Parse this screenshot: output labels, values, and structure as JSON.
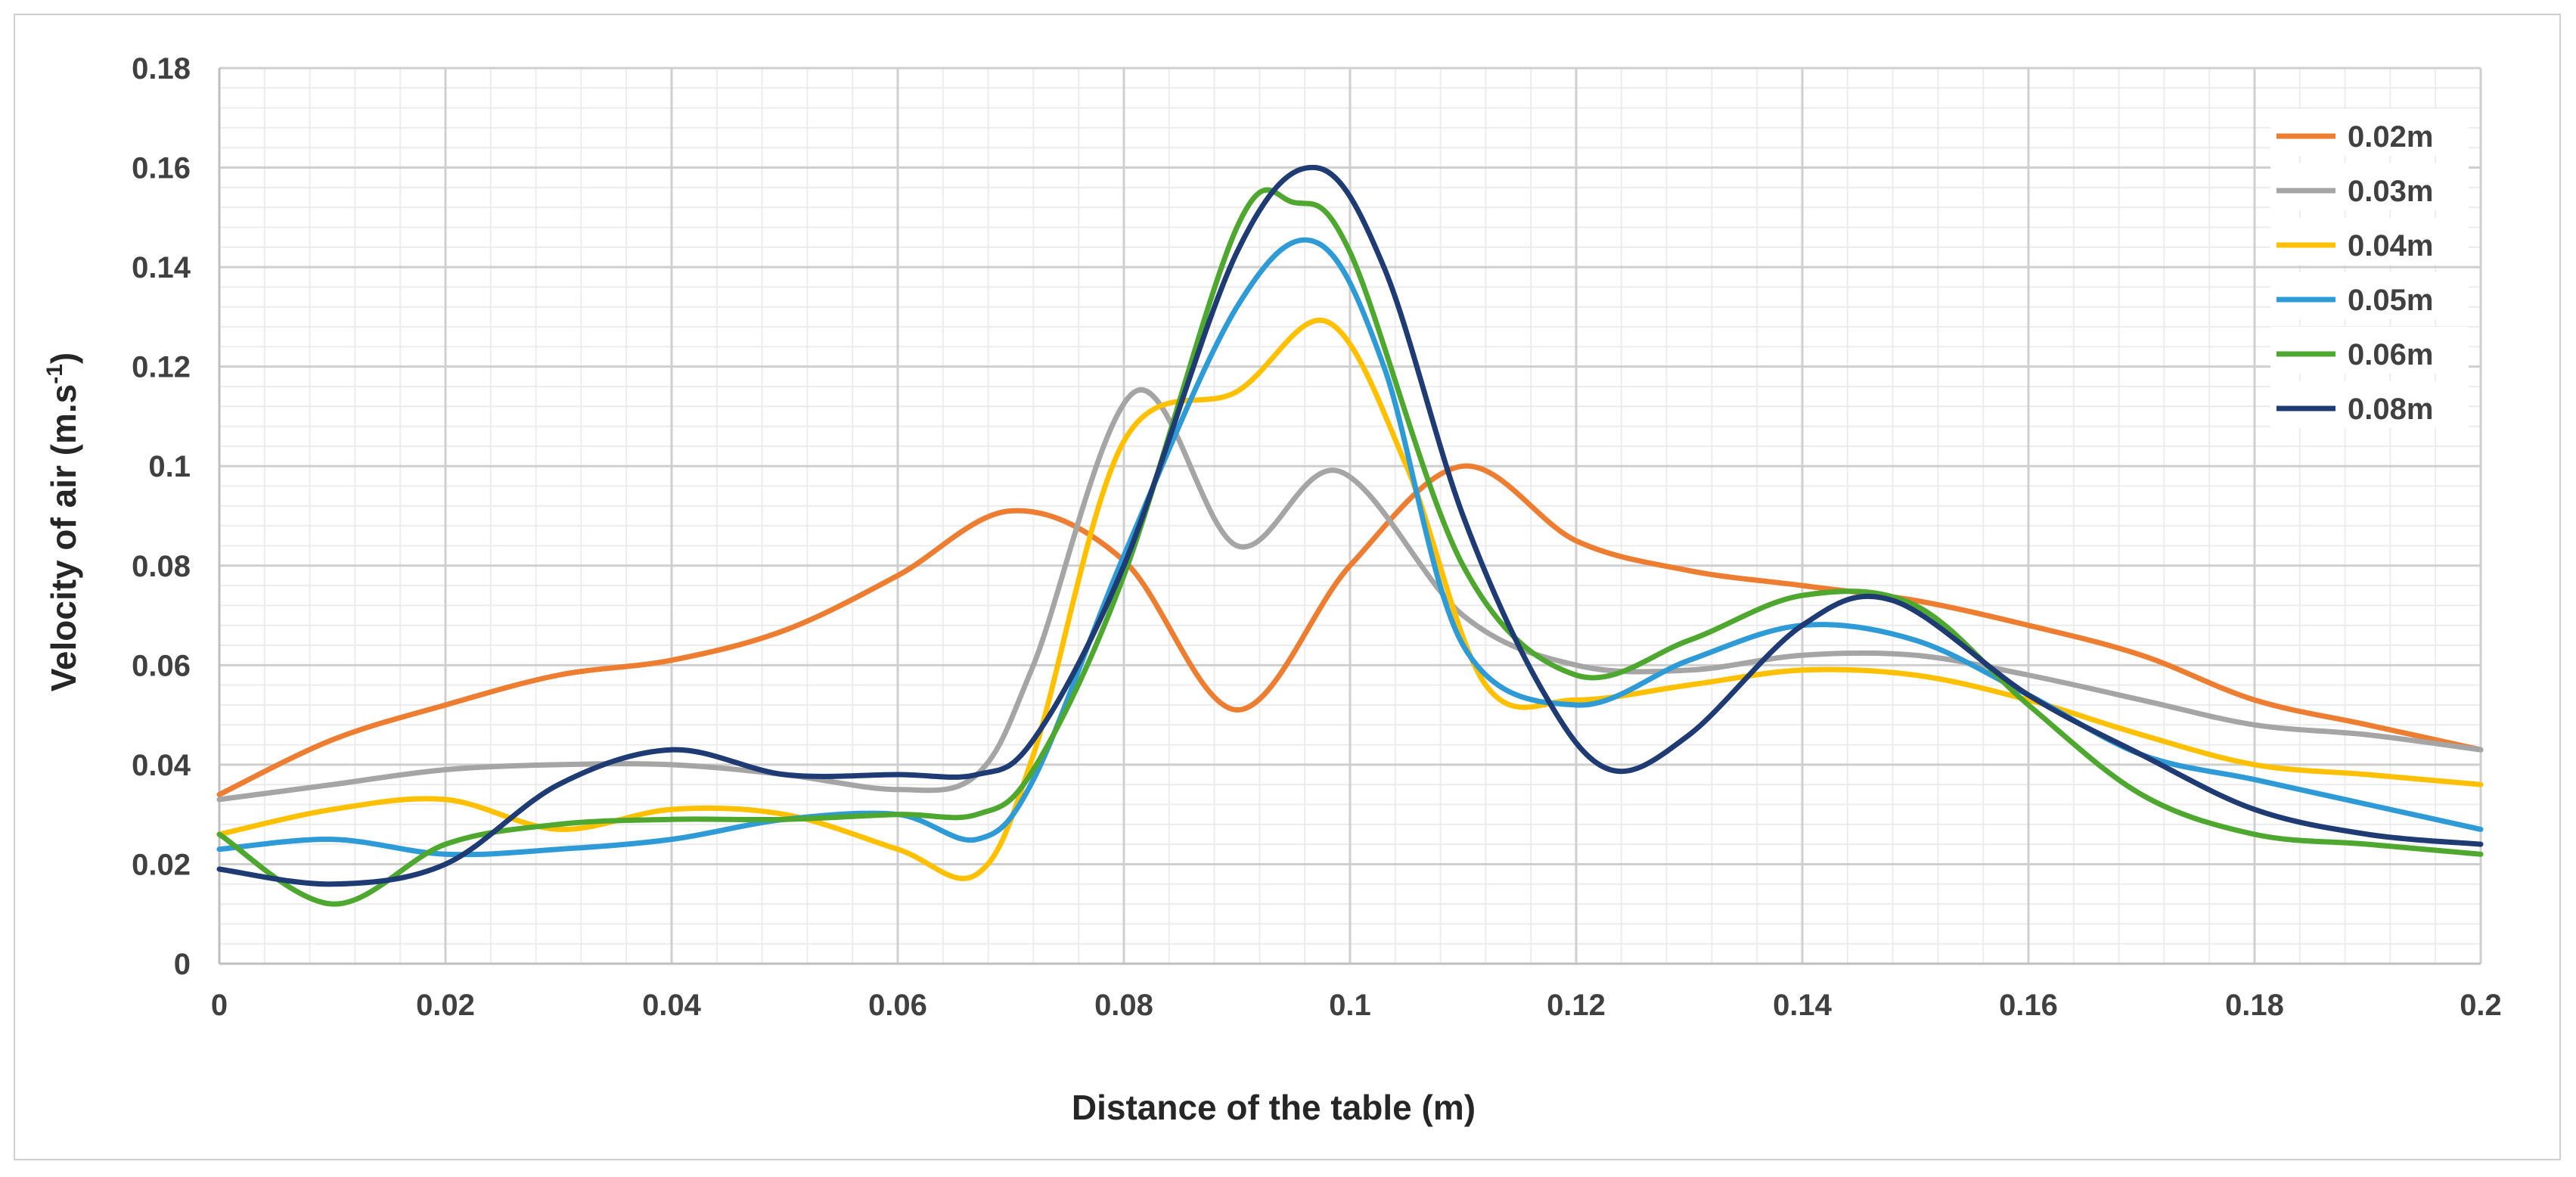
{
  "chart_data": {
    "type": "line",
    "title": "",
    "xlabel": "Distance of the table (m)",
    "ylabel": "Velocity of air (m.s",
    "ylabel_sup": "-1",
    "ylabel_close": ")",
    "xlim": [
      0,
      0.2
    ],
    "ylim": [
      0,
      0.18
    ],
    "x_ticks": [
      0,
      0.02,
      0.04,
      0.06,
      0.08,
      0.1,
      0.12,
      0.14,
      0.16,
      0.18,
      0.2
    ],
    "x_tick_labels": [
      "0",
      "0.02",
      "0.04",
      "0.06",
      "0.08",
      "0.1",
      "0.12",
      "0.14",
      "0.16",
      "0.18",
      "0.2"
    ],
    "y_ticks": [
      0,
      0.02,
      0.04,
      0.06,
      0.08,
      0.1,
      0.12,
      0.14,
      0.16,
      0.18
    ],
    "y_tick_labels": [
      "0",
      "0.02",
      "0.04",
      "0.06",
      "0.08",
      "0.1",
      "0.12",
      "0.14",
      "0.16",
      "0.18"
    ],
    "grid": true,
    "legend_position": "top-right",
    "series": [
      {
        "name": "0.02m",
        "color": "#ED7D31",
        "points": [
          [
            0,
            0.034
          ],
          [
            0.01,
            0.045
          ],
          [
            0.02,
            0.052
          ],
          [
            0.03,
            0.058
          ],
          [
            0.04,
            0.061
          ],
          [
            0.05,
            0.067
          ],
          [
            0.06,
            0.078
          ],
          [
            0.07,
            0.091
          ],
          [
            0.08,
            0.081
          ],
          [
            0.09,
            0.051
          ],
          [
            0.1,
            0.08
          ],
          [
            0.11,
            0.1
          ],
          [
            0.12,
            0.085
          ],
          [
            0.13,
            0.079
          ],
          [
            0.14,
            0.076
          ],
          [
            0.15,
            0.073
          ],
          [
            0.16,
            0.068
          ],
          [
            0.17,
            0.062
          ],
          [
            0.18,
            0.053
          ],
          [
            0.19,
            0.048
          ],
          [
            0.2,
            0.043
          ]
        ]
      },
      {
        "name": "0.03m",
        "color": "#A5A5A5",
        "points": [
          [
            0,
            0.033
          ],
          [
            0.01,
            0.036
          ],
          [
            0.02,
            0.039
          ],
          [
            0.03,
            0.04
          ],
          [
            0.04,
            0.04
          ],
          [
            0.05,
            0.038
          ],
          [
            0.06,
            0.035
          ],
          [
            0.067,
            0.038
          ],
          [
            0.072,
            0.06
          ],
          [
            0.081,
            0.115
          ],
          [
            0.09,
            0.084
          ],
          [
            0.099,
            0.099
          ],
          [
            0.11,
            0.07
          ],
          [
            0.12,
            0.06
          ],
          [
            0.13,
            0.059
          ],
          [
            0.14,
            0.062
          ],
          [
            0.15,
            0.062
          ],
          [
            0.16,
            0.058
          ],
          [
            0.17,
            0.053
          ],
          [
            0.18,
            0.048
          ],
          [
            0.19,
            0.046
          ],
          [
            0.2,
            0.043
          ]
        ]
      },
      {
        "name": "0.04m",
        "color": "#FFC000",
        "points": [
          [
            0,
            0.026
          ],
          [
            0.01,
            0.031
          ],
          [
            0.02,
            0.033
          ],
          [
            0.03,
            0.027
          ],
          [
            0.04,
            0.031
          ],
          [
            0.05,
            0.03
          ],
          [
            0.06,
            0.023
          ],
          [
            0.067,
            0.018
          ],
          [
            0.072,
            0.042
          ],
          [
            0.08,
            0.105
          ],
          [
            0.09,
            0.115
          ],
          [
            0.098,
            0.129
          ],
          [
            0.105,
            0.1
          ],
          [
            0.112,
            0.056
          ],
          [
            0.12,
            0.053
          ],
          [
            0.13,
            0.056
          ],
          [
            0.14,
            0.059
          ],
          [
            0.15,
            0.058
          ],
          [
            0.16,
            0.053
          ],
          [
            0.17,
            0.046
          ],
          [
            0.18,
            0.04
          ],
          [
            0.19,
            0.038
          ],
          [
            0.2,
            0.036
          ]
        ]
      },
      {
        "name": "0.05m",
        "color": "#2E9BD6",
        "points": [
          [
            0,
            0.023
          ],
          [
            0.01,
            0.025
          ],
          [
            0.02,
            0.022
          ],
          [
            0.03,
            0.023
          ],
          [
            0.04,
            0.025
          ],
          [
            0.05,
            0.029
          ],
          [
            0.06,
            0.03
          ],
          [
            0.067,
            0.025
          ],
          [
            0.072,
            0.037
          ],
          [
            0.08,
            0.082
          ],
          [
            0.09,
            0.132
          ],
          [
            0.097,
            0.145
          ],
          [
            0.103,
            0.12
          ],
          [
            0.11,
            0.064
          ],
          [
            0.12,
            0.052
          ],
          [
            0.13,
            0.061
          ],
          [
            0.14,
            0.068
          ],
          [
            0.15,
            0.065
          ],
          [
            0.16,
            0.054
          ],
          [
            0.17,
            0.042
          ],
          [
            0.18,
            0.037
          ],
          [
            0.19,
            0.032
          ],
          [
            0.2,
            0.027
          ]
        ]
      },
      {
        "name": "0.06m",
        "color": "#4EA72E",
        "points": [
          [
            0,
            0.026
          ],
          [
            0.01,
            0.012
          ],
          [
            0.02,
            0.024
          ],
          [
            0.03,
            0.028
          ],
          [
            0.04,
            0.029
          ],
          [
            0.05,
            0.029
          ],
          [
            0.06,
            0.03
          ],
          [
            0.067,
            0.03
          ],
          [
            0.072,
            0.039
          ],
          [
            0.08,
            0.078
          ],
          [
            0.09,
            0.148
          ],
          [
            0.095,
            0.153
          ],
          [
            0.1,
            0.143
          ],
          [
            0.11,
            0.08
          ],
          [
            0.12,
            0.058
          ],
          [
            0.13,
            0.065
          ],
          [
            0.14,
            0.074
          ],
          [
            0.15,
            0.072
          ],
          [
            0.16,
            0.052
          ],
          [
            0.17,
            0.034
          ],
          [
            0.18,
            0.026
          ],
          [
            0.19,
            0.024
          ],
          [
            0.2,
            0.022
          ]
        ]
      },
      {
        "name": "0.08m",
        "color": "#1F3B73",
        "points": [
          [
            0,
            0.019
          ],
          [
            0.01,
            0.016
          ],
          [
            0.02,
            0.02
          ],
          [
            0.03,
            0.036
          ],
          [
            0.04,
            0.043
          ],
          [
            0.05,
            0.038
          ],
          [
            0.06,
            0.038
          ],
          [
            0.067,
            0.038
          ],
          [
            0.072,
            0.045
          ],
          [
            0.08,
            0.08
          ],
          [
            0.09,
            0.143
          ],
          [
            0.097,
            0.16
          ],
          [
            0.103,
            0.14
          ],
          [
            0.11,
            0.09
          ],
          [
            0.117,
            0.055
          ],
          [
            0.123,
            0.039
          ],
          [
            0.13,
            0.046
          ],
          [
            0.14,
            0.068
          ],
          [
            0.148,
            0.073
          ],
          [
            0.16,
            0.054
          ],
          [
            0.17,
            0.042
          ],
          [
            0.18,
            0.031
          ],
          [
            0.19,
            0.026
          ],
          [
            0.2,
            0.024
          ]
        ]
      }
    ]
  }
}
